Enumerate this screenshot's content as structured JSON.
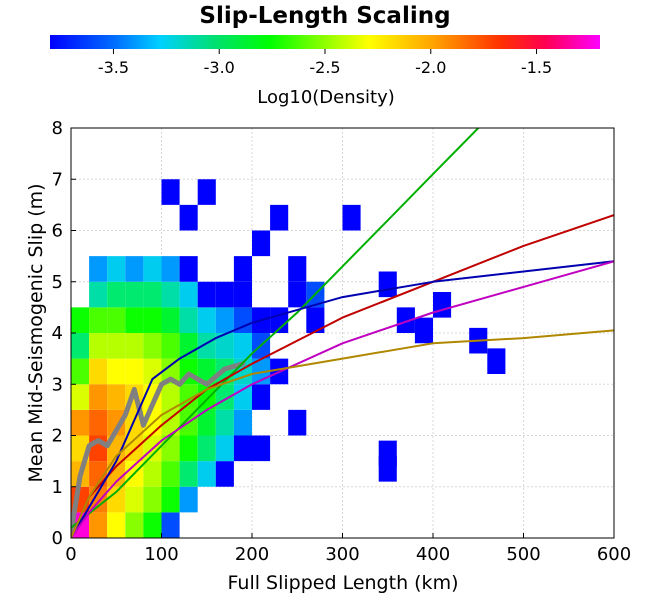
{
  "chart_data": {
    "type": "heatmap",
    "title": "Slip-Length Scaling",
    "xlabel": "Full Slipped Length (km)",
    "ylabel": "Mean Mid-Seismogenic Slip (m)",
    "xlim": [
      0,
      600
    ],
    "ylim": [
      0,
      8
    ],
    "x_ticks": [
      "0",
      "100",
      "200",
      "300",
      "400",
      "500",
      "600"
    ],
    "y_ticks": [
      "0",
      "1",
      "2",
      "3",
      "4",
      "5",
      "6",
      "7",
      "8"
    ],
    "grid": true,
    "colorbar": {
      "label": "Log10(Density)",
      "range": [
        -3.8,
        -1.2
      ],
      "ticks": [
        "-3.5",
        "-3.0",
        "-2.5",
        "-2.0",
        "-1.5"
      ],
      "tick_values": [
        -3.5,
        -3.0,
        -2.5,
        -2.0,
        -1.5
      ],
      "colormap": [
        "#0000ff",
        "#00c8ff",
        "#00e0a0",
        "#00ff00",
        "#a0ff00",
        "#ffff00",
        "#ffa000",
        "#ff6000",
        "#ff0000",
        "#ff00a0",
        "#ff00ff"
      ]
    },
    "density_cells": [
      {
        "x": 0,
        "y": 0,
        "v": -1.3
      },
      {
        "x": 0,
        "y": 0.5,
        "v": -1.9
      },
      {
        "x": 0,
        "y": 1.0,
        "v": -2.3
      },
      {
        "x": 0,
        "y": 1.5,
        "v": -2.4
      },
      {
        "x": 0,
        "y": 2.0,
        "v": -2.2
      },
      {
        "x": 0,
        "y": 2.5,
        "v": -2.6
      },
      {
        "x": 0,
        "y": 3.0,
        "v": -2.9
      },
      {
        "x": 0,
        "y": 3.5,
        "v": -3.2
      },
      {
        "x": 0,
        "y": 4.0,
        "v": -3.0
      },
      {
        "x": 20,
        "y": 0,
        "v": -2.2
      },
      {
        "x": 20,
        "y": 0.5,
        "v": -2.1
      },
      {
        "x": 20,
        "y": 1.0,
        "v": -2.0
      },
      {
        "x": 20,
        "y": 1.5,
        "v": -1.9
      },
      {
        "x": 20,
        "y": 2.0,
        "v": -2.0
      },
      {
        "x": 20,
        "y": 2.5,
        "v": -2.2
      },
      {
        "x": 20,
        "y": 3.0,
        "v": -2.4
      },
      {
        "x": 20,
        "y": 3.5,
        "v": -2.7
      },
      {
        "x": 20,
        "y": 4.0,
        "v": -2.9
      },
      {
        "x": 20,
        "y": 4.5,
        "v": -3.3
      },
      {
        "x": 20,
        "y": 5.0,
        "v": -3.6
      },
      {
        "x": 40,
        "y": 0,
        "v": -2.5
      },
      {
        "x": 40,
        "y": 0.5,
        "v": -2.4
      },
      {
        "x": 40,
        "y": 1.0,
        "v": -2.3
      },
      {
        "x": 40,
        "y": 1.5,
        "v": -2.3
      },
      {
        "x": 40,
        "y": 2.0,
        "v": -2.2
      },
      {
        "x": 40,
        "y": 2.5,
        "v": -2.3
      },
      {
        "x": 40,
        "y": 3.0,
        "v": -2.5
      },
      {
        "x": 40,
        "y": 3.5,
        "v": -2.7
      },
      {
        "x": 40,
        "y": 4.0,
        "v": -2.9
      },
      {
        "x": 40,
        "y": 4.5,
        "v": -3.2
      },
      {
        "x": 40,
        "y": 5.0,
        "v": -3.5
      },
      {
        "x": 60,
        "y": 0,
        "v": -2.8
      },
      {
        "x": 60,
        "y": 0.5,
        "v": -2.6
      },
      {
        "x": 60,
        "y": 1.0,
        "v": -2.5
      },
      {
        "x": 60,
        "y": 1.5,
        "v": -2.4
      },
      {
        "x": 60,
        "y": 2.0,
        "v": -2.4
      },
      {
        "x": 60,
        "y": 2.5,
        "v": -2.4
      },
      {
        "x": 60,
        "y": 3.0,
        "v": -2.5
      },
      {
        "x": 60,
        "y": 3.5,
        "v": -2.7
      },
      {
        "x": 60,
        "y": 4.0,
        "v": -3.0
      },
      {
        "x": 60,
        "y": 4.5,
        "v": -3.2
      },
      {
        "x": 60,
        "y": 5.0,
        "v": -3.6
      },
      {
        "x": 80,
        "y": 0,
        "v": -3.0
      },
      {
        "x": 80,
        "y": 0.5,
        "v": -2.8
      },
      {
        "x": 80,
        "y": 1.0,
        "v": -2.7
      },
      {
        "x": 80,
        "y": 1.5,
        "v": -2.6
      },
      {
        "x": 80,
        "y": 2.0,
        "v": -2.5
      },
      {
        "x": 80,
        "y": 2.5,
        "v": -2.5
      },
      {
        "x": 80,
        "y": 3.0,
        "v": -2.6
      },
      {
        "x": 80,
        "y": 3.5,
        "v": -2.8
      },
      {
        "x": 80,
        "y": 4.0,
        "v": -3.0
      },
      {
        "x": 80,
        "y": 4.5,
        "v": -3.2
      },
      {
        "x": 80,
        "y": 5.0,
        "v": -3.5
      },
      {
        "x": 100,
        "y": 0,
        "v": -3.7
      },
      {
        "x": 100,
        "y": 0.5,
        "v": -3.0
      },
      {
        "x": 100,
        "y": 1.0,
        "v": -2.9
      },
      {
        "x": 100,
        "y": 1.5,
        "v": -2.8
      },
      {
        "x": 100,
        "y": 2.0,
        "v": -2.7
      },
      {
        "x": 100,
        "y": 2.5,
        "v": -2.7
      },
      {
        "x": 100,
        "y": 3.0,
        "v": -2.8
      },
      {
        "x": 100,
        "y": 3.5,
        "v": -2.9
      },
      {
        "x": 100,
        "y": 4.0,
        "v": -3.1
      },
      {
        "x": 100,
        "y": 4.5,
        "v": -3.3
      },
      {
        "x": 100,
        "y": 5.0,
        "v": -3.6
      },
      {
        "x": 100,
        "y": 6.5,
        "v": -3.8
      },
      {
        "x": 120,
        "y": 0.5,
        "v": -3.6
      },
      {
        "x": 120,
        "y": 1.0,
        "v": -3.2
      },
      {
        "x": 120,
        "y": 1.5,
        "v": -3.0
      },
      {
        "x": 120,
        "y": 2.0,
        "v": -2.9
      },
      {
        "x": 120,
        "y": 2.5,
        "v": -2.9
      },
      {
        "x": 120,
        "y": 3.0,
        "v": -3.0
      },
      {
        "x": 120,
        "y": 3.5,
        "v": -3.1
      },
      {
        "x": 120,
        "y": 4.0,
        "v": -3.3
      },
      {
        "x": 120,
        "y": 4.5,
        "v": -3.5
      },
      {
        "x": 120,
        "y": 5.0,
        "v": -3.8
      },
      {
        "x": 120,
        "y": 6.0,
        "v": -3.8
      },
      {
        "x": 140,
        "y": 1.0,
        "v": -3.5
      },
      {
        "x": 140,
        "y": 1.5,
        "v": -3.2
      },
      {
        "x": 140,
        "y": 2.0,
        "v": -3.1
      },
      {
        "x": 140,
        "y": 2.5,
        "v": -3.0
      },
      {
        "x": 140,
        "y": 3.0,
        "v": -3.1
      },
      {
        "x": 140,
        "y": 3.5,
        "v": -3.3
      },
      {
        "x": 140,
        "y": 4.0,
        "v": -3.5
      },
      {
        "x": 140,
        "y": 4.5,
        "v": -3.8
      },
      {
        "x": 140,
        "y": 6.5,
        "v": -3.8
      },
      {
        "x": 160,
        "y": 1.0,
        "v": -3.8
      },
      {
        "x": 160,
        "y": 1.5,
        "v": -3.5
      },
      {
        "x": 160,
        "y": 2.0,
        "v": -3.3
      },
      {
        "x": 160,
        "y": 2.5,
        "v": -3.2
      },
      {
        "x": 160,
        "y": 3.0,
        "v": -3.2
      },
      {
        "x": 160,
        "y": 3.5,
        "v": -3.4
      },
      {
        "x": 160,
        "y": 4.0,
        "v": -3.6
      },
      {
        "x": 160,
        "y": 4.5,
        "v": -3.8
      },
      {
        "x": 180,
        "y": 1.5,
        "v": -3.8
      },
      {
        "x": 180,
        "y": 2.0,
        "v": -3.6
      },
      {
        "x": 180,
        "y": 2.5,
        "v": -3.5
      },
      {
        "x": 180,
        "y": 3.0,
        "v": -3.4
      },
      {
        "x": 180,
        "y": 3.5,
        "v": -3.5
      },
      {
        "x": 180,
        "y": 4.0,
        "v": -3.7
      },
      {
        "x": 180,
        "y": 4.5,
        "v": -3.8
      },
      {
        "x": 180,
        "y": 5.0,
        "v": -3.8
      },
      {
        "x": 200,
        "y": 1.5,
        "v": -3.8
      },
      {
        "x": 200,
        "y": 2.5,
        "v": -3.8
      },
      {
        "x": 200,
        "y": 3.0,
        "v": -3.6
      },
      {
        "x": 200,
        "y": 3.5,
        "v": -3.7
      },
      {
        "x": 200,
        "y": 4.0,
        "v": -3.8
      },
      {
        "x": 200,
        "y": 5.5,
        "v": -3.8
      },
      {
        "x": 220,
        "y": 4.0,
        "v": -3.8
      },
      {
        "x": 220,
        "y": 3.0,
        "v": -3.8
      },
      {
        "x": 220,
        "y": 6.0,
        "v": -3.8
      },
      {
        "x": 240,
        "y": 2.0,
        "v": -3.8
      },
      {
        "x": 240,
        "y": 4.5,
        "v": -3.8
      },
      {
        "x": 240,
        "y": 5.0,
        "v": -3.8
      },
      {
        "x": 260,
        "y": 4.5,
        "v": -3.7
      },
      {
        "x": 260,
        "y": 4.0,
        "v": -3.8
      },
      {
        "x": 300,
        "y": 6.0,
        "v": -3.8
      },
      {
        "x": 340,
        "y": 4.7,
        "v": -3.8
      },
      {
        "x": 340,
        "y": 1.4,
        "v": -3.8
      },
      {
        "x": 340,
        "y": 1.1,
        "v": -3.8
      },
      {
        "x": 360,
        "y": 4.0,
        "v": -3.8
      },
      {
        "x": 380,
        "y": 3.8,
        "v": -3.8
      },
      {
        "x": 400,
        "y": 4.3,
        "v": -3.8
      },
      {
        "x": 440,
        "y": 3.6,
        "v": -3.8
      },
      {
        "x": 460,
        "y": 3.2,
        "v": -3.8
      }
    ],
    "density_cell_size": [
      20,
      0.5
    ],
    "series": [
      {
        "color": "#808080",
        "values": [
          [
            0,
            0.1
          ],
          [
            10,
            1.2
          ],
          [
            20,
            1.8
          ],
          [
            30,
            1.9
          ],
          [
            40,
            1.8
          ],
          [
            50,
            2.1
          ],
          [
            60,
            2.4
          ],
          [
            70,
            2.9
          ],
          [
            80,
            2.2
          ],
          [
            90,
            2.6
          ],
          [
            100,
            3.0
          ],
          [
            110,
            3.1
          ],
          [
            120,
            3.0
          ],
          [
            130,
            3.2
          ],
          [
            150,
            3.0
          ],
          [
            170,
            3.3
          ],
          [
            190,
            3.4
          ]
        ]
      },
      {
        "color": "#00b000",
        "values": [
          [
            0,
            0.2
          ],
          [
            50,
            0.9
          ],
          [
            100,
            1.8
          ],
          [
            150,
            2.7
          ],
          [
            200,
            3.6
          ],
          [
            250,
            4.4
          ],
          [
            300,
            5.3
          ],
          [
            350,
            6.2
          ],
          [
            400,
            7.1
          ],
          [
            450,
            8.0
          ]
        ]
      },
      {
        "color": "#c00000",
        "values": [
          [
            0,
            0
          ],
          [
            20,
            0.8
          ],
          [
            50,
            1.4
          ],
          [
            100,
            2.2
          ],
          [
            150,
            2.9
          ],
          [
            200,
            3.4
          ],
          [
            300,
            4.3
          ],
          [
            400,
            5.0
          ],
          [
            500,
            5.7
          ],
          [
            600,
            6.3
          ]
        ]
      },
      {
        "color": "#0000b0",
        "values": [
          [
            0,
            0
          ],
          [
            20,
            0.6
          ],
          [
            50,
            1.5
          ],
          [
            90,
            3.1
          ],
          [
            120,
            3.5
          ],
          [
            160,
            3.9
          ],
          [
            200,
            4.2
          ],
          [
            300,
            4.7
          ],
          [
            400,
            5.0
          ],
          [
            500,
            5.2
          ],
          [
            600,
            5.4
          ]
        ]
      },
      {
        "color": "#c000c0",
        "values": [
          [
            0,
            0
          ],
          [
            20,
            0.5
          ],
          [
            50,
            1.1
          ],
          [
            100,
            1.9
          ],
          [
            150,
            2.5
          ],
          [
            200,
            3.0
          ],
          [
            300,
            3.8
          ],
          [
            400,
            4.4
          ],
          [
            500,
            4.9
          ],
          [
            600,
            5.4
          ]
        ]
      },
      {
        "color": "#b08800",
        "values": [
          [
            0,
            0
          ],
          [
            20,
            0.8
          ],
          [
            50,
            1.6
          ],
          [
            100,
            2.4
          ],
          [
            150,
            2.9
          ],
          [
            200,
            3.2
          ],
          [
            300,
            3.5
          ],
          [
            400,
            3.8
          ],
          [
            500,
            3.9
          ],
          [
            600,
            4.05
          ]
        ]
      }
    ]
  }
}
